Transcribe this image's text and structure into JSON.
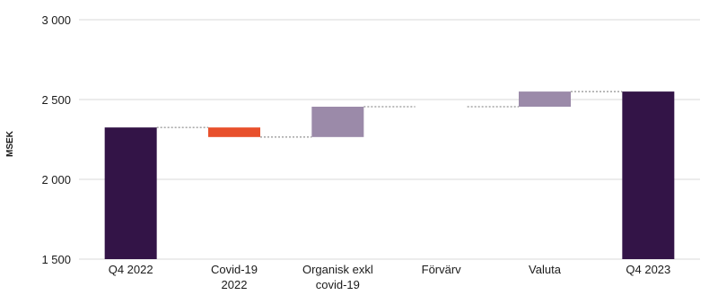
{
  "chart_data": {
    "type": "waterfall",
    "ylabel": "MSEK",
    "ylim": [
      1500,
      3000
    ],
    "yticks": [
      1500,
      2000,
      2500,
      3000
    ],
    "ytick_labels": [
      "1 500",
      "2 000",
      "2 500",
      "3 000"
    ],
    "categories": [
      {
        "label": [
          "Q4 2022"
        ],
        "kind": "total",
        "value": 2325
      },
      {
        "label": [
          "Covid-19",
          "2022"
        ],
        "kind": "delta",
        "value": -60
      },
      {
        "label": [
          "Organisk exkl",
          "covid-19"
        ],
        "kind": "delta",
        "value": 190
      },
      {
        "label": [
          "Förvärv"
        ],
        "kind": "delta",
        "value": 0
      },
      {
        "label": [
          "Valuta"
        ],
        "kind": "delta",
        "value": 95
      },
      {
        "label": [
          "Q4 2023"
        ],
        "kind": "total",
        "value": 2550
      }
    ],
    "colors": {
      "total": "#331447",
      "negative": "#e8502c",
      "positive": "#9b8aa9",
      "grid": "#d8d8d8",
      "connector": "#777777"
    },
    "grid": true,
    "legend": "none"
  }
}
